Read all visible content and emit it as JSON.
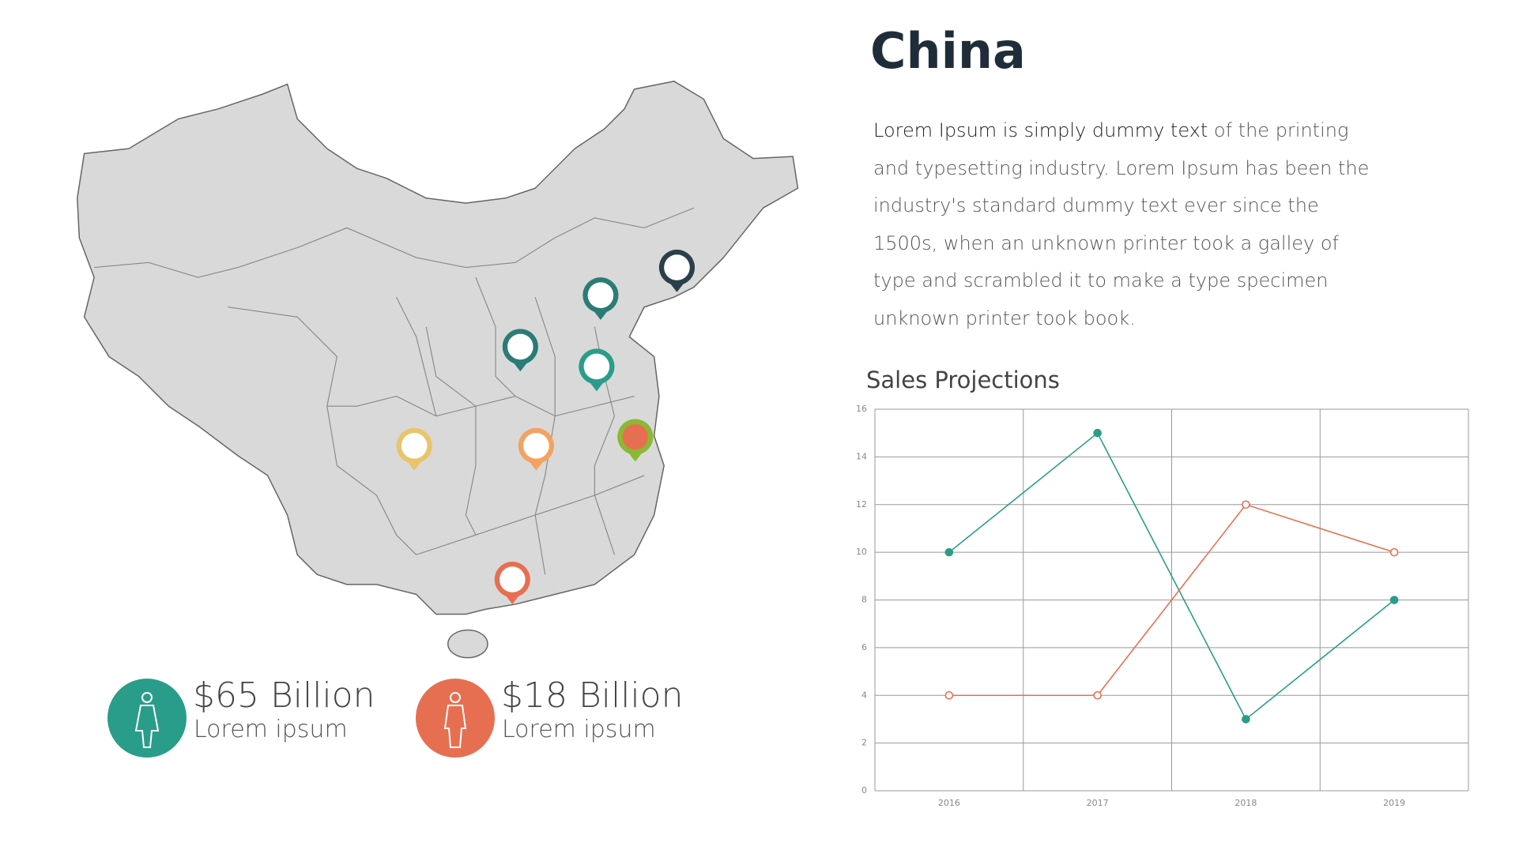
{
  "title": "China",
  "body": {
    "lead": "Lorem Ipsum is simply dummy text",
    "rest": "of the printing and typesetting industry. Lorem Ipsum has been the industry's standard dummy text ever since the 1500s, when an unknown printer took a galley of type and scrambled it to make a type specimen unknown printer took book."
  },
  "stats": [
    {
      "value": "$65 Billion",
      "label": "Lorem ipsum",
      "color": "#2a9d8a"
    },
    {
      "value": "$18 Billion",
      "label": "Lorem ipsum",
      "color": "#e76f51"
    }
  ],
  "chart_data": {
    "type": "line",
    "title": "Sales Projections",
    "categories": [
      "2016",
      "2017",
      "2018",
      "2019"
    ],
    "series": [
      {
        "color": "#2a9d8a",
        "values": [
          10,
          15,
          3,
          8
        ],
        "filled": true
      },
      {
        "color": "#e76f51",
        "values": [
          4,
          4,
          12,
          10
        ],
        "filled": false
      }
    ],
    "ylim": [
      0,
      16
    ],
    "yticks": [
      0,
      2,
      4,
      6,
      8,
      10,
      12,
      14,
      16
    ],
    "grid": true
  }
}
